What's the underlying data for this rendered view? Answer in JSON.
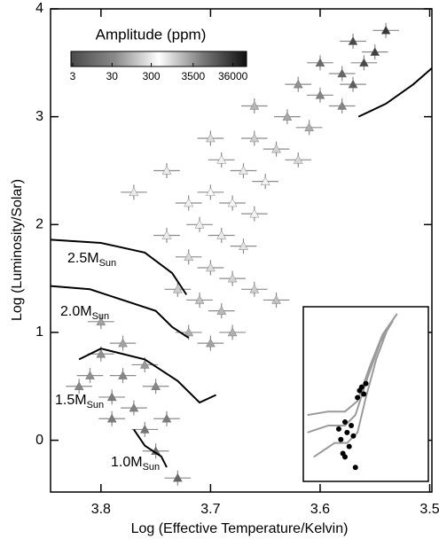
{
  "chart_data": {
    "type": "scatter",
    "xlabel": "Log (Effective Temperature/Kelvin)",
    "ylabel": "Log (Luminosity/Solar)",
    "xlim": [
      3.846,
      3.498
    ],
    "ylim": [
      -0.48,
      4.0
    ],
    "xticks": [
      3.8,
      3.7,
      3.6,
      3.5
    ],
    "yticks": [
      0,
      1,
      2,
      3,
      4
    ],
    "x_error": 0.012,
    "y_error": 0.07,
    "error_color": "#8c8c8c",
    "colorbar": {
      "label": "Amplitude (ppm)",
      "lim": [
        2.7,
        80000
      ],
      "log": true,
      "ticks": [
        3,
        30,
        300,
        3500,
        36000
      ],
      "colormap": [
        "#4a4a4a",
        "#8a8a8a",
        "#ffffff",
        "#7a7a7a",
        "#101010"
      ]
    },
    "series": [
      {
        "x": [
          3.8,
          3.78,
          3.76,
          3.79,
          3.77,
          3.81,
          3.75,
          3.78,
          3.74,
          3.76,
          3.75,
          3.73,
          3.82,
          3.79,
          3.72,
          3.7,
          3.71,
          3.73,
          3.69,
          3.72,
          3.7,
          3.68,
          3.74,
          3.71,
          3.69,
          3.67,
          3.72,
          3.7,
          3.68,
          3.66,
          3.74,
          3.69,
          3.67,
          3.65,
          3.7,
          3.66,
          3.64,
          3.62,
          3.66,
          3.63,
          3.61,
          3.62,
          3.6,
          3.58,
          3.6,
          3.58,
          3.57,
          3.57,
          3.55,
          3.56,
          3.54,
          3.66,
          3.64,
          3.68,
          3.77,
          3.8
        ],
        "y": [
          0.8,
          0.6,
          0.7,
          0.4,
          0.3,
          0.6,
          0.5,
          0.9,
          0.2,
          0.1,
          -0.1,
          -0.35,
          0.5,
          0.2,
          1.0,
          0.9,
          1.3,
          1.4,
          1.2,
          1.7,
          1.6,
          1.5,
          1.9,
          2.0,
          1.9,
          1.8,
          2.2,
          2.3,
          2.2,
          2.1,
          2.5,
          2.6,
          2.5,
          2.4,
          2.8,
          2.8,
          2.7,
          2.6,
          3.1,
          3.0,
          2.9,
          3.3,
          3.2,
          3.1,
          3.5,
          3.4,
          3.3,
          3.7,
          3.6,
          3.5,
          3.8,
          1.4,
          1.3,
          1.0,
          2.3,
          1.1
        ],
        "amplitude": [
          40,
          30,
          50,
          20,
          25,
          40,
          30,
          60,
          20,
          15,
          10,
          8,
          30,
          20,
          80,
          60,
          120,
          150,
          100,
          200,
          220,
          180,
          300,
          320,
          300,
          250,
          350,
          400,
          380,
          350,
          300,
          600,
          700,
          600,
          900,
          1200,
          1100,
          1000,
          2000,
          2500,
          2200,
          4000,
          5000,
          5000,
          9000,
          10000,
          12000,
          20000,
          25000,
          20000,
          30000,
          150,
          120,
          80,
          300,
          60
        ]
      }
    ],
    "tracks": [
      {
        "label": "2.5M",
        "sub": "Sun",
        "color": "#000000",
        "x": [
          3.846,
          3.8,
          3.76,
          3.735,
          3.722,
          null,
          3.565,
          3.54,
          3.515,
          3.498
        ],
        "y": [
          1.86,
          1.83,
          1.74,
          1.55,
          1.35,
          null,
          3.0,
          3.12,
          3.3,
          3.45
        ]
      },
      {
        "label": "2.0M",
        "sub": "Sun",
        "color": "#000000",
        "x": [
          3.846,
          3.81,
          3.78,
          3.75,
          3.735,
          3.72
        ],
        "y": [
          1.43,
          1.4,
          1.3,
          1.2,
          1.05,
          0.95
        ]
      },
      {
        "label": "1.5M",
        "sub": "Sun",
        "color": "#000000",
        "x": [
          3.82,
          3.8,
          3.76,
          3.73,
          3.71,
          3.695
        ],
        "y": [
          0.75,
          0.85,
          0.75,
          0.55,
          0.35,
          0.42
        ]
      },
      {
        "label": "1.0M",
        "sub": "Sun",
        "color": "#000000",
        "x": [
          3.77,
          3.76,
          3.745,
          3.74
        ],
        "y": [
          0.1,
          -0.05,
          -0.15,
          -0.25
        ]
      }
    ],
    "inset": {
      "xlim": [
        4.0,
        3.4
      ],
      "ylim": [
        -1,
        4
      ],
      "point_color": "#000000",
      "track_color": "#9a9a9a",
      "x": [
        3.73,
        3.72,
        3.71,
        3.74,
        3.7,
        3.8,
        3.79,
        3.82,
        3.78,
        3.81,
        3.77,
        3.76,
        3.83,
        3.8,
        3.75
      ],
      "y": [
        1.6,
        1.7,
        1.5,
        1.4,
        1.8,
        0.7,
        0.4,
        0.2,
        0.0,
        -0.2,
        0.6,
        0.3,
        0.5,
        -0.3,
        -0.6
      ],
      "tracks": [
        {
          "x": [
            3.98,
            3.88,
            3.8,
            3.74,
            3.68,
            3.62,
            3.55
          ],
          "y": [
            0.9,
            1.0,
            1.0,
            1.3,
            2.3,
            3.2,
            3.8
          ]
        },
        {
          "x": [
            3.98,
            3.88,
            3.8,
            3.75,
            3.69,
            3.63,
            3.57
          ],
          "y": [
            0.4,
            0.6,
            0.6,
            0.9,
            2.0,
            3.0,
            3.6
          ]
        },
        {
          "x": [
            3.95,
            3.85,
            3.79,
            3.74,
            3.7,
            3.65,
            3.6
          ],
          "y": [
            -0.3,
            0.1,
            0.1,
            0.4,
            1.4,
            2.5,
            3.3
          ]
        }
      ]
    }
  }
}
